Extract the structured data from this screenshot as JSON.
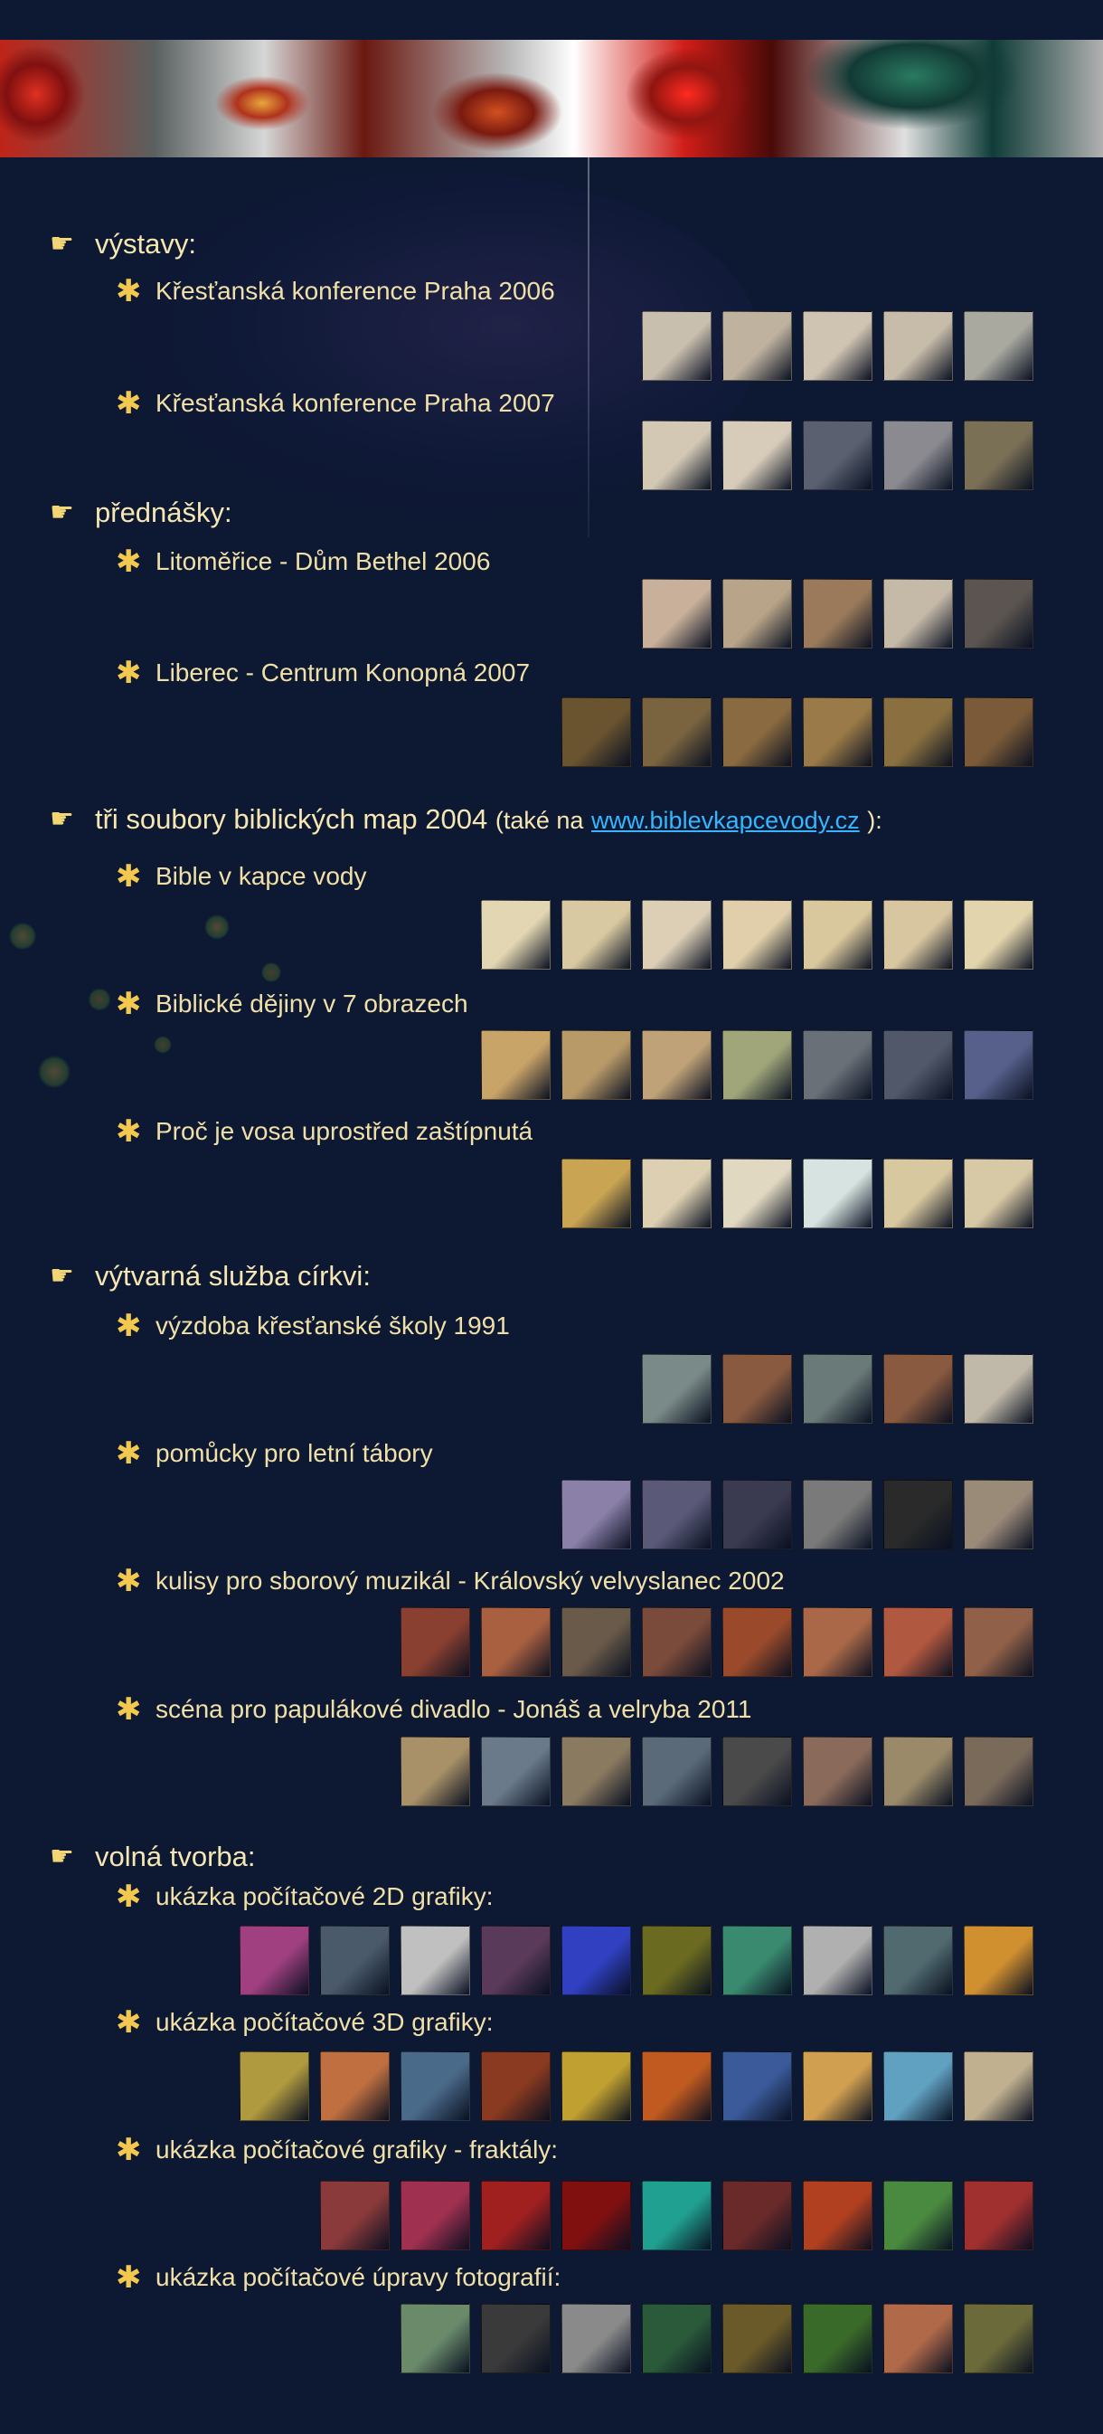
{
  "sections": [
    {
      "id": "vystavy",
      "title": "výstavy:",
      "extra": "",
      "link": "",
      "extra_end": ""
    },
    {
      "id": "prednasky",
      "title": "přednášky:",
      "extra": "",
      "link": "",
      "extra_end": ""
    },
    {
      "id": "mapy",
      "title": "tři soubory biblických map 2004",
      "extra": "(také na",
      "link": "www.biblevkapcevody.cz",
      "extra_end": "):"
    },
    {
      "id": "sluzba",
      "title": "výtvarná služba církvi:",
      "extra": "",
      "link": "",
      "extra_end": ""
    },
    {
      "id": "tvorba",
      "title": "volná tvorba:",
      "extra": "",
      "link": "",
      "extra_end": ""
    }
  ],
  "items": [
    {
      "label": "Křesťanská konference Praha 2006",
      "thumbs": [
        "#c9bfae",
        "#bfb3a0",
        "#cfc3b2",
        "#c7bca9",
        "#a9a9a0"
      ]
    },
    {
      "label": "Křesťanská konference Praha 2007",
      "thumbs": [
        "#d2c8b4",
        "#d7ccba",
        "#5a6070",
        "#8a8a90",
        "#7a7056"
      ]
    },
    {
      "label": "Litoměřice - Dům Bethel 2006",
      "thumbs": [
        "#c8b09a",
        "#b8a488",
        "#9a7a5a",
        "#c5b9a8",
        "#5b5450"
      ]
    },
    {
      "label": "Liberec - Centrum Konopná 2007",
      "thumbs": [
        "#6a5430",
        "#7a6440",
        "#8a6a40",
        "#9a7a48",
        "#8a7040",
        "#7a5a38"
      ]
    },
    {
      "label": "Bible v kapce vody",
      "thumbs": [
        "#e3d6b2",
        "#d9c9a2",
        "#dccfb6",
        "#e0cfaa",
        "#d9c79d",
        "#d8c6a0",
        "#e2d4ac"
      ]
    },
    {
      "label": "Biblické dějiny v 7 obrazech",
      "thumbs": [
        "#c9a468",
        "#b89a68",
        "#c0a278",
        "#a0a67a",
        "#6a7078",
        "#50586a",
        "#56608a"
      ]
    },
    {
      "label": "Proč je vosa uprostřed zaštípnutá",
      "thumbs": [
        "#c9a453",
        "#ddd0b2",
        "#e1d8c2",
        "#d7e3e0",
        "#d8c8a0",
        "#d8c9a6"
      ]
    },
    {
      "label": "výzdoba křesťanské školy 1991",
      "thumbs": [
        "#7a8a88",
        "#8a5a40",
        "#6a7a78",
        "#8a5a40",
        "#c0b8a8"
      ]
    },
    {
      "label": "pomůcky pro letní tábory",
      "thumbs": [
        "#8a80a8",
        "#5a5a78",
        "#3a3a50",
        "#7a7a7a",
        "#2a2a2a",
        "#9a8a78"
      ]
    },
    {
      "label": "kulisy pro sborový muzikál - Královský velvyslanec  2002",
      "thumbs": [
        "#8a4030",
        "#a86040",
        "#6a5a4a",
        "#7a4a3a",
        "#9a4a2a",
        "#aa6848",
        "#b05840",
        "#906048"
      ]
    },
    {
      "label": "scéna pro papulákové divadlo - Jonáš a velryba  2011",
      "thumbs": [
        "#a89068",
        "#6a7a8a",
        "#8a7a60",
        "#5a6a78",
        "#4a4a4a",
        "#8a6a5a",
        "#9a8a6a",
        "#7a6a5a"
      ]
    },
    {
      "label": "ukázka počítačové 2D grafiky:",
      "thumbs": [
        "#a04080",
        "#4a5a6a",
        "#c0c0c0",
        "#5a3a5a",
        "#3040c0",
        "#6a6a20",
        "#3a8a70",
        "#b0b0b0",
        "#506a70",
        "#d09030"
      ]
    },
    {
      "label": "ukázka počítačové 3D grafiky:",
      "thumbs": [
        "#b09a40",
        "#c07040",
        "#4a6a8a",
        "#8a3a20",
        "#c0a030",
        "#c05a20",
        "#3a5a9a",
        "#d0a050",
        "#60a0c0",
        "#c0b090"
      ]
    },
    {
      "label": "ukázka počítačové grafiky - fraktály:",
      "thumbs": [
        "#8a3a3a",
        "#a03050",
        "#a02020",
        "#801010",
        "#20a090",
        "#6a2a2a",
        "#b04020",
        "#4a8a40",
        "#a03030"
      ]
    },
    {
      "label": "ukázka počítačové úpravy fotografií:",
      "thumbs": [
        "#6a8a6a",
        "#3a3a3a",
        "#8a8a8a",
        "#2a5a3a",
        "#6a5a2a",
        "#3a6a2a",
        "#b06a4a",
        "#6a6a3a"
      ]
    }
  ]
}
